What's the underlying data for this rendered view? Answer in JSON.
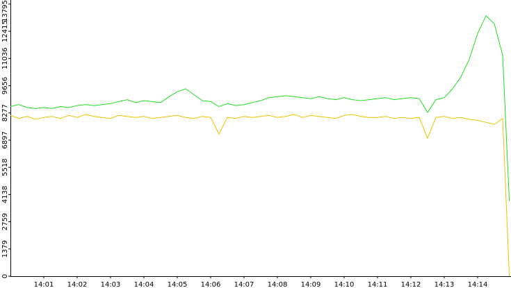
{
  "chart_data": {
    "type": "line",
    "x": [
      0,
      0.25,
      0.5,
      0.75,
      1,
      1.25,
      1.5,
      1.75,
      2,
      2.25,
      2.5,
      2.75,
      3,
      3.25,
      3.5,
      3.75,
      4,
      4.25,
      4.5,
      4.75,
      5,
      5.25,
      5.5,
      5.75,
      6,
      6.25,
      6.5,
      6.75,
      7,
      7.25,
      7.5,
      7.75,
      8,
      8.25,
      8.5,
      8.75,
      9,
      9.25,
      9.5,
      9.75,
      10,
      10.25,
      10.5,
      10.75,
      11,
      11.25,
      11.5,
      11.75,
      12,
      12.25,
      12.5,
      12.75,
      13,
      13.25,
      13.5,
      13.75,
      14,
      14.25,
      14.5,
      14.75,
      14.95
    ],
    "series": [
      {
        "color": "#22dd22",
        "values": [
          8600,
          8700,
          8550,
          8500,
          8550,
          8500,
          8600,
          8550,
          8650,
          8700,
          8650,
          8700,
          8750,
          8850,
          8950,
          8800,
          8900,
          8850,
          8800,
          9100,
          9350,
          9500,
          9200,
          8900,
          8850,
          8600,
          8750,
          8650,
          8700,
          8800,
          8900,
          9050,
          9100,
          9150,
          9100,
          9050,
          9000,
          9100,
          9000,
          8950,
          9050,
          8950,
          8900,
          8950,
          9000,
          9050,
          8950,
          9000,
          9050,
          9000,
          8300,
          8950,
          9050,
          9500,
          10100,
          11000,
          12300,
          13200,
          12800,
          11200,
          3800
        ]
      },
      {
        "color": "#f0c000",
        "values": [
          8150,
          8000,
          8100,
          7950,
          8050,
          8100,
          8000,
          8150,
          8050,
          8200,
          8100,
          8050,
          8000,
          8150,
          8100,
          8050,
          8100,
          8000,
          8050,
          8100,
          8150,
          8050,
          8000,
          8100,
          8050,
          7200,
          8050,
          8000,
          8100,
          8050,
          8100,
          8150,
          8050,
          8100,
          8200,
          8050,
          8150,
          8100,
          8050,
          8000,
          8150,
          8200,
          8100,
          8050,
          8050,
          8100,
          8000,
          8050,
          8000,
          8050,
          7000,
          8050,
          8100,
          8000,
          8050,
          7950,
          7900,
          7800,
          7700,
          8000,
          0
        ]
      }
    ],
    "xlim": [
      0,
      15
    ],
    "xticks": [
      {
        "value": 1,
        "label": "14:01"
      },
      {
        "value": 2,
        "label": "14:02"
      },
      {
        "value": 3,
        "label": "14:03"
      },
      {
        "value": 4,
        "label": "14:04"
      },
      {
        "value": 5,
        "label": "14:05"
      },
      {
        "value": 6,
        "label": "14:06"
      },
      {
        "value": 7,
        "label": "14:07"
      },
      {
        "value": 8,
        "label": "14:08"
      },
      {
        "value": 9,
        "label": "14:09"
      },
      {
        "value": 10,
        "label": "14:10"
      },
      {
        "value": 11,
        "label": "14:11"
      },
      {
        "value": 12,
        "label": "14:12"
      },
      {
        "value": 13,
        "label": "14:13"
      },
      {
        "value": 14,
        "label": "14:14"
      }
    ],
    "ylim": [
      0,
      14000
    ],
    "yticks": [
      0,
      1379,
      2759,
      4138,
      5518,
      6897,
      8277,
      9656,
      11036,
      12415,
      13795
    ]
  }
}
